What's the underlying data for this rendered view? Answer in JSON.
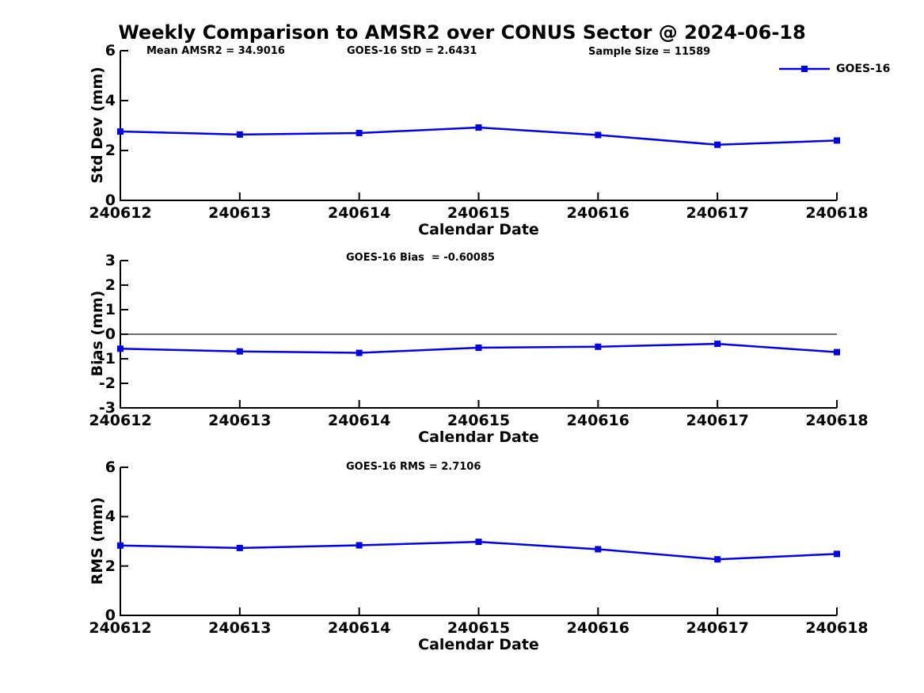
{
  "title": "Weekly Comparison to AMSR2 over CONUS Sector @ 2024-06-18",
  "legend": {
    "label": "GOES-16",
    "marker": "filled-square",
    "position": "top-right"
  },
  "colors": {
    "series_blue": "#0000E6",
    "zero_line_gray": "#595959",
    "axis_black": "#000000",
    "text_black": "#000000",
    "background": "#FFFFFF"
  },
  "x_axis": {
    "label": "Calendar Date"
  },
  "chart_data": [
    {
      "type": "line",
      "id": "stddev",
      "ylabel": "Std Dev (mm)",
      "xlabel": "Calendar Date",
      "ylim": [
        0,
        6
      ],
      "yticks": [
        0,
        2,
        4,
        6
      ],
      "grid": false,
      "categories": [
        "240612",
        "240613",
        "240614",
        "240615",
        "240616",
        "240617",
        "240618"
      ],
      "series": [
        {
          "name": "GOES-16",
          "values": [
            2.76,
            2.64,
            2.7,
            2.92,
            2.62,
            2.23,
            2.4
          ]
        }
      ],
      "annotations": [
        "Mean AMSR2 = 34.9016",
        "GOES-16 StD = 2.6431",
        "Sample Size = 11589"
      ]
    },
    {
      "type": "line",
      "id": "bias",
      "ylabel": "Bias (mm)",
      "xlabel": "Calendar Date",
      "ylim": [
        -3,
        3
      ],
      "yticks": [
        -3,
        -2,
        -1,
        0,
        1,
        2,
        3
      ],
      "zero_line": true,
      "grid": false,
      "categories": [
        "240612",
        "240613",
        "240614",
        "240615",
        "240616",
        "240617",
        "240618"
      ],
      "series": [
        {
          "name": "GOES-16",
          "values": [
            -0.59,
            -0.7,
            -0.76,
            -0.55,
            -0.51,
            -0.39,
            -0.73
          ]
        }
      ],
      "annotations": [
        "GOES-16 Bias  = -0.60085"
      ]
    },
    {
      "type": "line",
      "id": "rms",
      "ylabel": "RMS (mm)",
      "xlabel": "Calendar Date",
      "ylim": [
        0,
        6
      ],
      "yticks": [
        0,
        2,
        4,
        6
      ],
      "grid": false,
      "categories": [
        "240612",
        "240613",
        "240614",
        "240615",
        "240616",
        "240617",
        "240618"
      ],
      "series": [
        {
          "name": "GOES-16",
          "values": [
            2.83,
            2.73,
            2.84,
            2.98,
            2.68,
            2.27,
            2.49
          ]
        }
      ],
      "annotations": [
        "GOES-16 RMS = 2.7106"
      ]
    }
  ]
}
